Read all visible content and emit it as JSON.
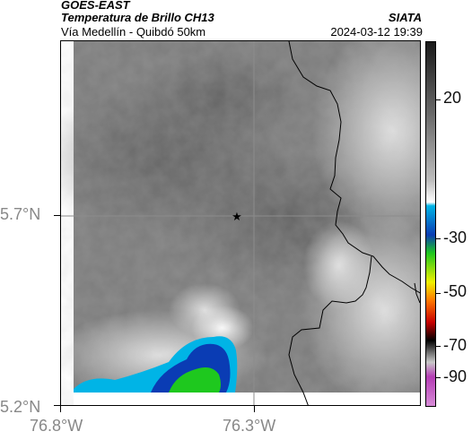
{
  "header": {
    "satellite": "GOES-EAST",
    "product": "Temperatura de Brillo CH13",
    "route": "Vía Medellín - Quibdó 50km",
    "agency": "SIATA",
    "datetime": "2024-03-12 19:39"
  },
  "axes": {
    "y_labels": [
      "5.7°N",
      "5.2°N"
    ],
    "x_labels": [
      "76.8°W",
      "76.3°W"
    ]
  },
  "colorbar": {
    "labels": [
      "20",
      "-30",
      "-50",
      "-70",
      "-90"
    ],
    "colors": {
      "warm_dark": "#1a1a1a",
      "mid_gray": "#9a9a9a",
      "light": "#ffffff",
      "cyan": "#00b4e6",
      "blue": "#0a3cb4",
      "green": "#1ec81e",
      "yellow": "#f0f000",
      "orange": "#ff7800",
      "red": "#c80000",
      "black": "#000000",
      "purple": "#b43cb4"
    }
  },
  "map": {
    "marker": "star-icon",
    "boundary_color": "#000000",
    "grid_color": "#8c8c8c"
  }
}
